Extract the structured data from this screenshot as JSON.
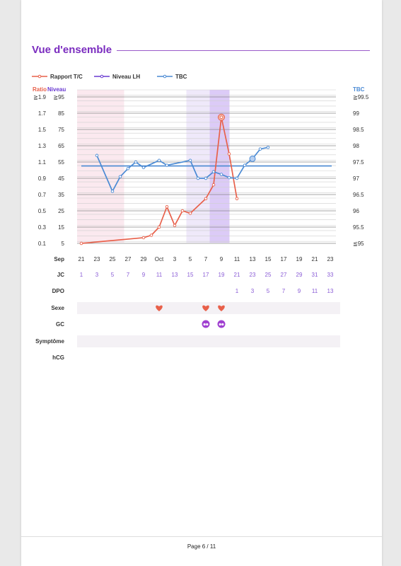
{
  "page_title": "Vue d'ensemble",
  "footer": "Page 6 / 11",
  "colors": {
    "ratio": "#e8604a",
    "lh": "#6a3bd1",
    "tbc": "#4a8ad4",
    "title": "#7a2bbf",
    "period_fill": "#fbe9ef",
    "fertile_fill": "#efe9fa",
    "ovulation_fill": "#dccbf7",
    "heart": "#e8604a",
    "gc": "#a040d0",
    "jc_text": "#8a5cd6"
  },
  "legend": [
    {
      "key": "ratio",
      "label": "Rapport T/C"
    },
    {
      "key": "lh",
      "label": "Niveau LH"
    },
    {
      "key": "tbc",
      "label": "TBC"
    }
  ],
  "axis_headers": {
    "ratio": "Ratio",
    "niveau": "Niveau",
    "tbc": "TBC"
  },
  "chart_data": {
    "type": "line",
    "x_days": [
      "21",
      "23",
      "25",
      "27",
      "29",
      "Oct",
      "3",
      "5",
      "7",
      "9",
      "11",
      "13",
      "15",
      "17",
      "19",
      "21",
      "23"
    ],
    "x_month_label": "Sep",
    "jc_values": [
      "1",
      "3",
      "5",
      "7",
      "9",
      "11",
      "13",
      "15",
      "17",
      "19",
      "21",
      "23",
      "25",
      "27",
      "29",
      "31",
      "33"
    ],
    "dpo_values": [
      "1",
      "3",
      "5",
      "7",
      "9",
      "11",
      "13"
    ],
    "dpo_start_index": 10,
    "left_axis_ratio_ticks": [
      "≧1.9",
      "1.7",
      "1.5",
      "1.3",
      "1.1",
      "0.9",
      "0.7",
      "0.5",
      "0.3",
      "0.1"
    ],
    "left_axis_niveau_ticks": [
      "≧95",
      "85",
      "75",
      "65",
      "55",
      "45",
      "35",
      "25",
      "15",
      "5"
    ],
    "right_axis_tbc_ticks": [
      "≧99.5",
      "99",
      "98.5",
      "98",
      "97.5",
      "97",
      "96.5",
      "96",
      "95.5",
      "≦95"
    ],
    "ratio_range": [
      0.1,
      1.9
    ],
    "tbc_range": [
      95,
      99.5
    ],
    "series": [
      {
        "name": "Rapport T/C",
        "axis": "ratio",
        "points": [
          [
            0,
            0.1
          ],
          [
            8,
            0.17
          ],
          [
            9,
            0.2
          ],
          [
            10,
            0.3
          ],
          [
            11,
            0.55
          ],
          [
            12,
            0.32
          ],
          [
            13,
            0.5
          ],
          [
            14,
            0.47
          ],
          [
            16,
            0.65
          ],
          [
            17,
            0.82
          ],
          [
            18,
            1.65
          ],
          [
            19,
            1.2
          ],
          [
            20,
            0.65
          ]
        ]
      },
      {
        "name": "TBC",
        "axis": "tbc",
        "points": [
          [
            2,
            97.7
          ],
          [
            4,
            96.6
          ],
          [
            5,
            97.05
          ],
          [
            6,
            97.3
          ],
          [
            7,
            97.5
          ],
          [
            8,
            97.33
          ],
          [
            10,
            97.55
          ],
          [
            11,
            97.4
          ],
          [
            14,
            97.55
          ],
          [
            15,
            97.0
          ],
          [
            16,
            97.0
          ],
          [
            17,
            97.2
          ],
          [
            18,
            97.12
          ],
          [
            19,
            97.02
          ],
          [
            20,
            97.0
          ],
          [
            21,
            97.4
          ],
          [
            22,
            97.6
          ],
          [
            23,
            97.9
          ],
          [
            24,
            97.95
          ]
        ],
        "coverline": 97.38
      }
    ],
    "ovulation_marker_index": 18,
    "temp_marker_index": 22,
    "shaded": [
      {
        "kind": "period",
        "from": 0,
        "to": 6
      },
      {
        "kind": "fertile",
        "from": 14,
        "to": 17
      },
      {
        "kind": "ovulation",
        "from": 17,
        "to": 20
      }
    ],
    "rows": [
      {
        "label": "Sep",
        "type": "day"
      },
      {
        "label": "JC",
        "type": "jc"
      },
      {
        "label": "DPO",
        "type": "dpo"
      },
      {
        "label": "Sexe",
        "type": "sex",
        "shaded": true,
        "marks": [
          10,
          16,
          18
        ]
      },
      {
        "label": "GC",
        "type": "gc",
        "shaded": false,
        "marks": [
          16,
          18
        ]
      },
      {
        "label": "Symptôme",
        "type": "symptom",
        "shaded": true,
        "marks": []
      },
      {
        "label": "hCG",
        "type": "hcg",
        "shaded": false,
        "marks": []
      }
    ]
  }
}
